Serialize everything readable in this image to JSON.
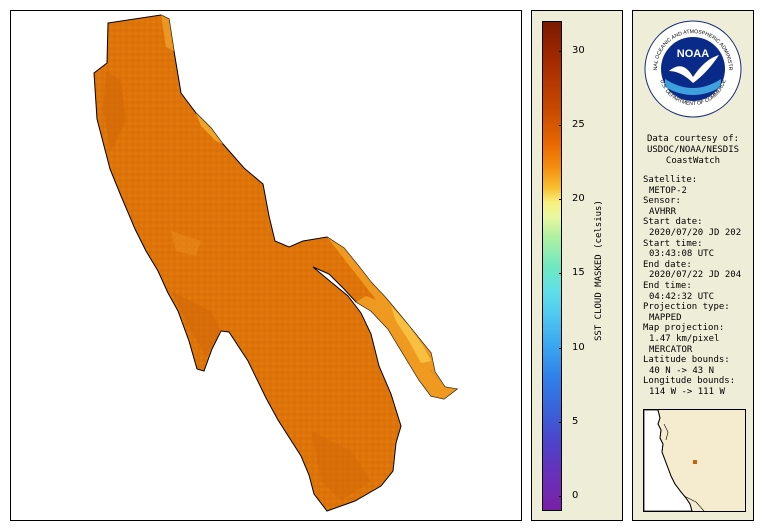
{
  "colorbar": {
    "title": "SST CLOUD MASKED (celsius)",
    "min": -1,
    "max": 32,
    "ticks": [
      "0",
      "5",
      "10",
      "15",
      "20",
      "25",
      "30"
    ],
    "tick_values": [
      0,
      5,
      10,
      15,
      20,
      25,
      30
    ]
  },
  "credits": {
    "line1": "Data courtesy of:",
    "line2": "USDOC/NOAA/NESDIS",
    "line3": "CoastWatch"
  },
  "logo": {
    "text": "NOAA",
    "ring_text": "NATIONAL OCEANIC AND ATMOSPHERIC ADMINISTRATION",
    "bottom_text": "U.S. DEPARTMENT OF COMMERCE"
  },
  "metadata": [
    {
      "label": "Satellite:",
      "value": "METOP-2"
    },
    {
      "label": "Sensor:",
      "value": "AVHRR"
    },
    {
      "label": "Start date:",
      "value": "2020/07/20 JD 202"
    },
    {
      "label": "Start time:",
      "value": "03:43:08 UTC"
    },
    {
      "label": "End date:",
      "value": "2020/07/22 JD 204"
    },
    {
      "label": "End time:",
      "value": "04:42:32 UTC"
    },
    {
      "label": "Projection type:",
      "value": "MAPPED"
    },
    {
      "label": "Map projection:",
      "value": "1.47 km/pixel"
    },
    {
      "label": "",
      "value": "MERCATOR"
    },
    {
      "label": "Latitude bounds:",
      "value": "40 N -> 43 N"
    },
    {
      "label": "Longitude bounds:",
      "value": "114 W -> 111 W"
    }
  ],
  "colors": {
    "panel_bg": "#eeeed8",
    "lake_main": "#e0780a",
    "lake_warm": "#d56a08",
    "lake_cool": "#f5a82a",
    "inset_land": "#f5ecd0",
    "inset_marker": "#c86010"
  }
}
